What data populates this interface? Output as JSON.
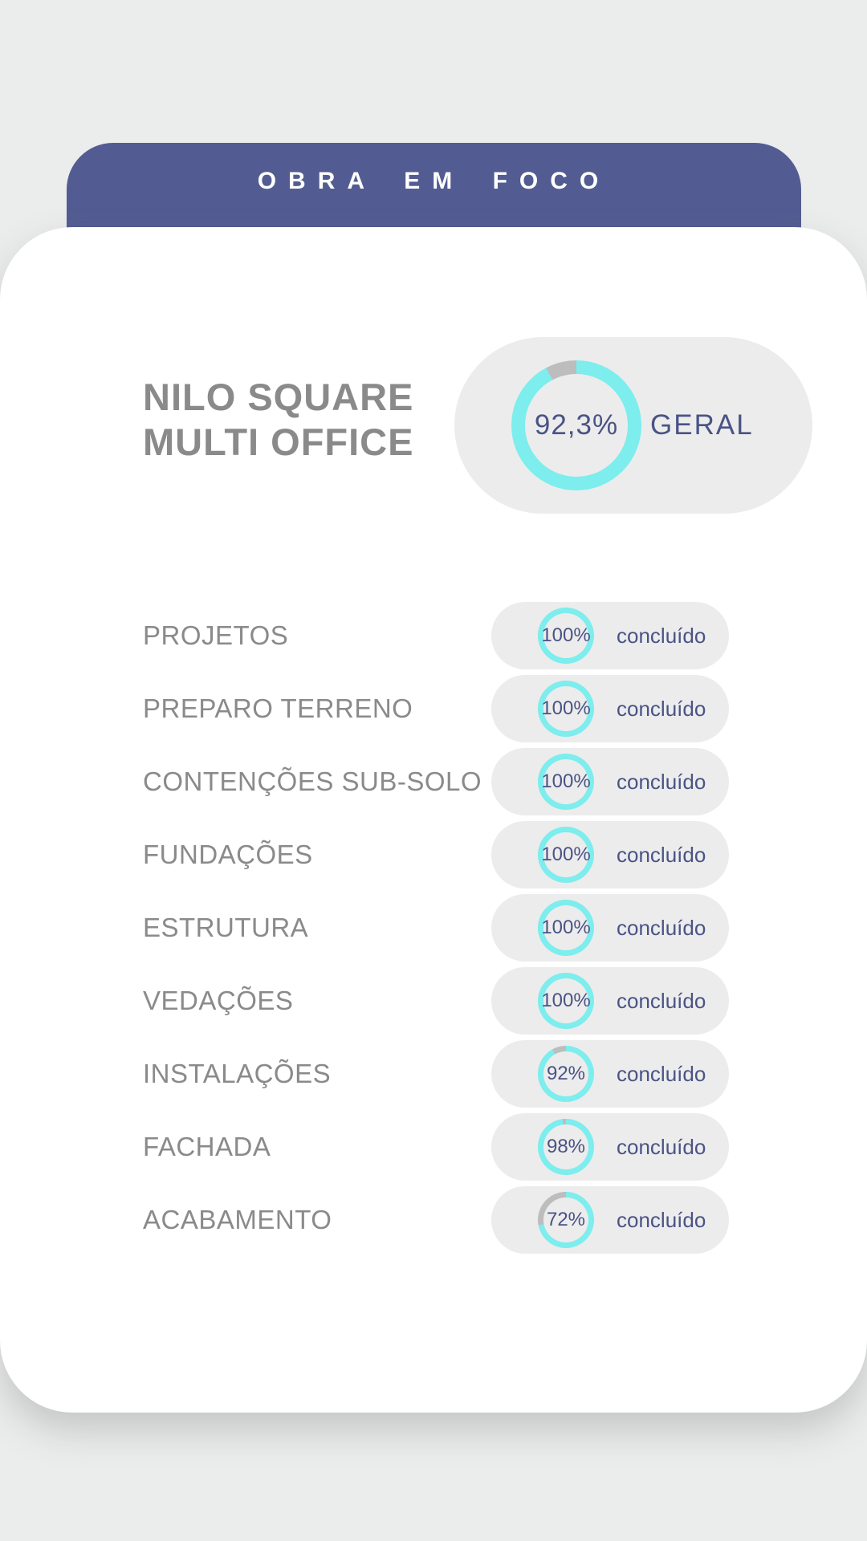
{
  "banner": {
    "label": "OBRA EM FOCO"
  },
  "project": {
    "title_line1": "NILO SQUARE",
    "title_line2": "MULTI OFFICE"
  },
  "overall": {
    "value_label": "92,3%",
    "pct": 92.3,
    "label": "GERAL"
  },
  "phases": [
    {
      "label": "PROJETOS",
      "pct": 100,
      "pct_label": "100%",
      "status": "concluído"
    },
    {
      "label": "PREPARO TERRENO",
      "pct": 100,
      "pct_label": "100%",
      "status": "concluído"
    },
    {
      "label": "CONTENÇÕES SUB-SOLO",
      "pct": 100,
      "pct_label": "100%",
      "status": "concluído"
    },
    {
      "label": "FUNDAÇÕES",
      "pct": 100,
      "pct_label": "100%",
      "status": "concluído"
    },
    {
      "label": "ESTRUTURA",
      "pct": 100,
      "pct_label": "100%",
      "status": "concluído"
    },
    {
      "label": "VEDAÇÕES",
      "pct": 100,
      "pct_label": "100%",
      "status": "concluído"
    },
    {
      "label": "INSTALAÇÕES",
      "pct": 92,
      "pct_label": "92%",
      "status": "concluído"
    },
    {
      "label": "FACHADA",
      "pct": 98,
      "pct_label": "98%",
      "status": "concluído"
    },
    {
      "label": "ACABAMENTO",
      "pct": 72,
      "pct_label": "72%",
      "status": "concluído"
    }
  ],
  "colors": {
    "page_bg": "#EBECEC",
    "banner_bg": "#535C92",
    "banner_fg": "#FFFFFF",
    "pill_bg": "#ECECEC",
    "progress_cyan": "#7DEDED",
    "remainder_gray": "#BDBDBD",
    "text_blue": "#4A5385",
    "label_gray": "#8A8A8A"
  },
  "chart_data": {
    "type": "donut",
    "title": "OBRA EM FOCO",
    "subtitle": "NILO SQUARE MULTI OFFICE",
    "overall": {
      "label": "GERAL",
      "value_pct": 92.3,
      "value_label": "92,3%"
    },
    "categories": [
      "PROJETOS",
      "PREPARO TERRENO",
      "CONTENÇÕES SUB-SOLO",
      "FUNDAÇÕES",
      "ESTRUTURA",
      "VEDAÇÕES",
      "INSTALAÇÕES",
      "FACHADA",
      "ACABAMENTO"
    ],
    "values": [
      100,
      100,
      100,
      100,
      100,
      100,
      92,
      98,
      72
    ],
    "value_suffix": "%",
    "status_label": "concluído",
    "legend_position": "none",
    "colors": {
      "progress": "#7DEDED",
      "remainder": "#BDBDBD"
    }
  }
}
